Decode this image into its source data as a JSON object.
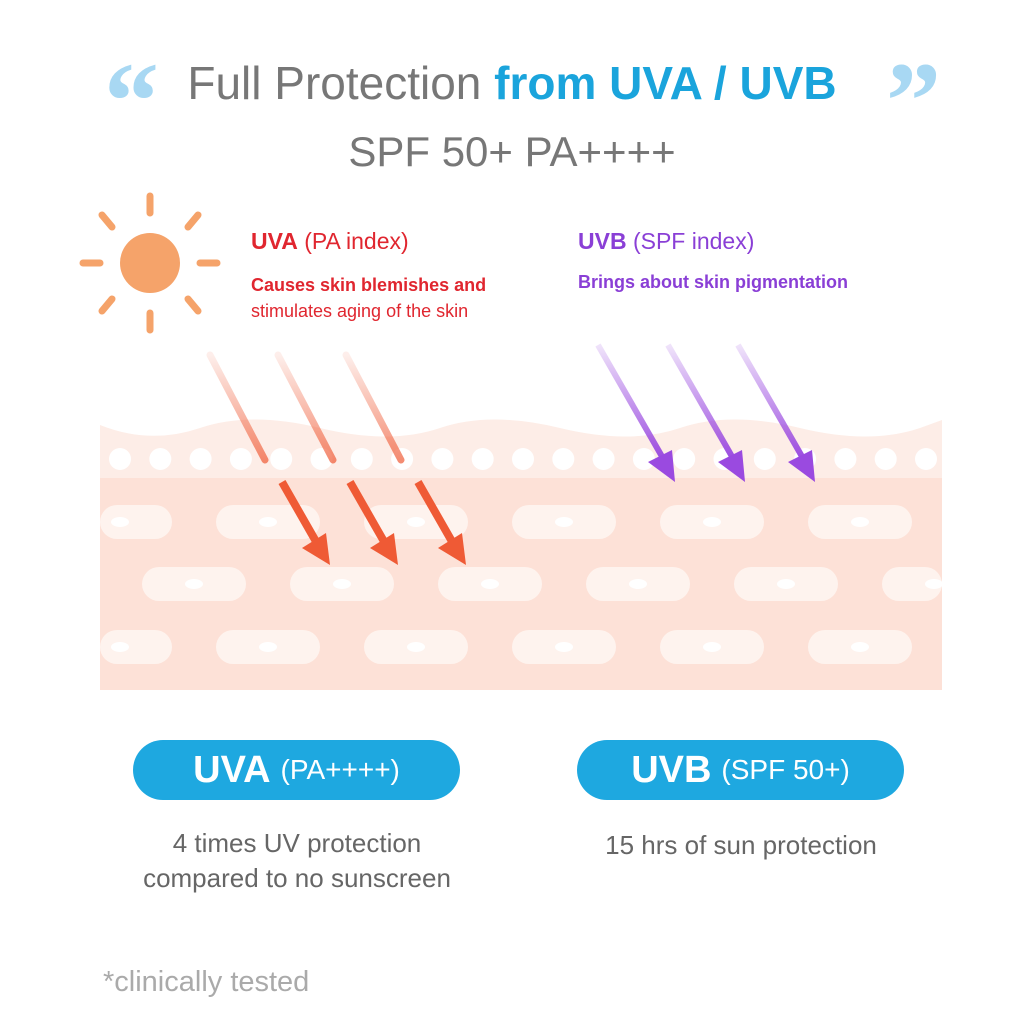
{
  "header": {
    "title_plain": "Full Protection ",
    "title_highlight": "from UVA / UVB",
    "subtitle": "SPF 50+ PA++++",
    "open_quote": "“",
    "close_quote": "”"
  },
  "uva": {
    "heading_bold": "UVA",
    "heading_rest": " (PA index)",
    "description_line1": "Causes skin blemishes and",
    "description_line2": "stimulates aging of the skin",
    "color": "#e0262f",
    "arrow_color": "#ef5a35"
  },
  "uvb": {
    "heading_bold": "UVB",
    "heading_rest": " (SPF index)",
    "description": "Brings about skin pigmentation",
    "color": "#8a3fd6",
    "arrow_color": "#9a4ae0"
  },
  "badges": [
    {
      "bold": "UVA",
      "rest": "(PA++++)",
      "line1": "4 times UV protection",
      "line2": "compared to no sunscreen"
    },
    {
      "bold": "UVB",
      "rest": "(SPF 50+)",
      "line1": "15 hrs of sun protection"
    }
  ],
  "badge_color": "#1ea8e0",
  "footnote": "*clinically tested",
  "icons": {
    "sun": "sun-icon"
  }
}
